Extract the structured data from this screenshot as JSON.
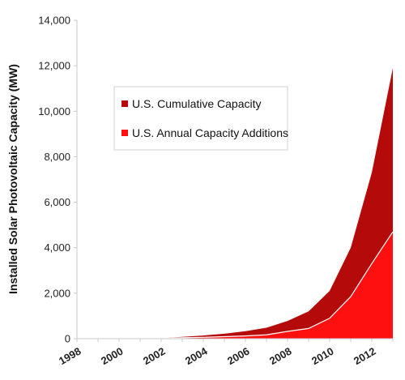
{
  "chart_data": {
    "type": "area",
    "ylabel": "Installed Solar Photovoltaic Capacity (MW)",
    "xlabel": "",
    "ylim": [
      0,
      14000
    ],
    "y_ticks": [
      0,
      2000,
      4000,
      6000,
      8000,
      10000,
      12000,
      14000
    ],
    "y_tick_labels": [
      "0",
      "2,000",
      "4,000",
      "6,000",
      "8,000",
      "10,000",
      "12,000",
      "14,000"
    ],
    "x": [
      1998,
      1999,
      2000,
      2001,
      2002,
      2003,
      2004,
      2005,
      2006,
      2007,
      2008,
      2009,
      2010,
      2011,
      2012,
      2013
    ],
    "x_ticks": [
      1998,
      2000,
      2002,
      2004,
      2006,
      2008,
      2010,
      2012
    ],
    "x_tick_labels": [
      "1998",
      "2000",
      "2002",
      "2004",
      "2006",
      "2008",
      "2010",
      "2012"
    ],
    "series": [
      {
        "name": "U.S. Cumulative Capacity",
        "color": "#b40a0a",
        "values": [
          0,
          0,
          0,
          0,
          20,
          80,
          140,
          220,
          330,
          480,
          780,
          1200,
          2100,
          4000,
          7300,
          11900
        ]
      },
      {
        "name": "U.S. Annual Capacity Additions",
        "color": "#ff1010",
        "values": [
          0,
          0,
          0,
          0,
          10,
          40,
          60,
          90,
          120,
          170,
          320,
          450,
          900,
          1850,
          3300,
          4700
        ]
      }
    ],
    "grid": false,
    "legend_position": "upper-middle"
  }
}
